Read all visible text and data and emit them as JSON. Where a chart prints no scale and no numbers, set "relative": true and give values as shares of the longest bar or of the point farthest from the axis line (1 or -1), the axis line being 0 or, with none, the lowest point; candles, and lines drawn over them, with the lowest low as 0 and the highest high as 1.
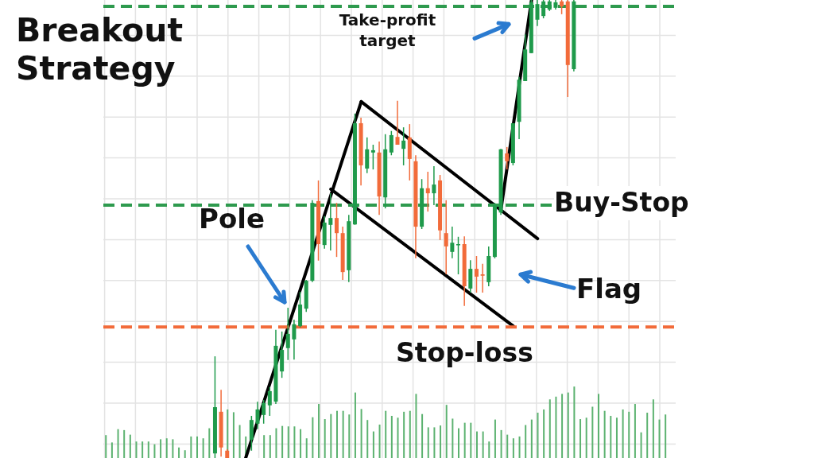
{
  "chart_data": {
    "type": "candlestick",
    "title": "Breakout Strategy",
    "relative": true,
    "grid": true,
    "legend": false,
    "tick_labels": false,
    "categories": [
      null,
      null,
      null,
      null,
      null,
      null,
      null,
      null,
      null,
      null,
      null,
      null,
      null,
      null,
      null,
      null,
      null,
      null,
      null,
      null,
      null,
      null,
      null,
      null,
      null,
      null,
      null,
      null,
      null,
      null,
      null,
      null,
      null,
      null,
      null,
      null,
      null,
      null,
      null,
      null,
      null,
      null,
      null,
      null,
      null,
      null,
      null,
      null,
      null,
      null,
      null,
      null,
      null,
      null,
      null,
      null,
      null,
      null,
      null,
      null,
      null,
      null,
      null,
      null,
      null,
      null,
      null,
      null,
      null,
      null,
      null,
      null,
      null,
      null,
      null,
      null,
      null,
      null,
      null,
      null,
      null,
      null,
      null,
      null,
      null,
      null,
      null,
      null,
      null,
      null,
      null,
      null,
      null
    ],
    "ohlc": [
      null,
      null,
      null,
      null,
      null,
      null,
      null,
      null,
      null,
      null,
      null,
      null,
      null,
      null,
      null,
      null,
      null,
      null,
      [
        0.01,
        0.222,
        0,
        0.111
      ],
      [
        0.101,
        0.149,
        0.003,
        0.023
      ],
      [
        0.016,
        0.019,
        0,
        0
      ],
      null,
      null,
      null,
      [
        0.04,
        0.092,
        0.016,
        0.083
      ],
      [
        0.075,
        0.123,
        0.063,
        0.106
      ],
      [
        0.094,
        0.127,
        0.075,
        0.12
      ],
      [
        0.115,
        0.155,
        0.092,
        0.146
      ],
      [
        0.123,
        0.28,
        0.118,
        0.245
      ],
      [
        0.189,
        0.276,
        0.175,
        0.236
      ],
      [
        0.24,
        0.328,
        0.214,
        0.271
      ],
      [
        0.259,
        0.302,
        0.215,
        0.292
      ],
      [
        0.288,
        0.363,
        0.285,
        0.335
      ],
      [
        0.326,
        0.389,
        0.319,
        0.387
      ],
      [
        0.387,
        0.563,
        0.384,
        0.557
      ],
      [
        0.561,
        0.606,
        0.431,
        0.467
      ],
      [
        0.465,
        0.528,
        0.457,
        0.514
      ],
      [
        0.509,
        0.578,
        0.453,
        0.524
      ],
      [
        0.524,
        0.557,
        0.439,
        0.491
      ],
      [
        0.491,
        0.505,
        0.389,
        0.406
      ],
      [
        0.41,
        0.531,
        0.384,
        0.517
      ],
      [
        0.51,
        0.752,
        0.509,
        0.731
      ],
      [
        0.731,
        0.743,
        0.595,
        0.639
      ],
      [
        0.632,
        0.7,
        0.622,
        0.674
      ],
      [
        0.667,
        0.684,
        0.63,
        0.672
      ],
      [
        0.667,
        0.691,
        0.531,
        0.571
      ],
      [
        0.569,
        0.707,
        0.545,
        0.674
      ],
      [
        0.667,
        0.714,
        0.661,
        0.705
      ],
      [
        0.701,
        0.78,
        0.684,
        0.684
      ],
      [
        0.675,
        0.722,
        0.639,
        0.693
      ],
      [
        0.7,
        0.729,
        0.606,
        0.653
      ],
      [
        0.648,
        0.661,
        0.436,
        0.505
      ],
      [
        0.505,
        0.609,
        0.5,
        0.589
      ],
      [
        0.589,
        0.625,
        0.538,
        0.578
      ],
      [
        0.578,
        0.637,
        0.552,
        0.597
      ],
      [
        0.606,
        0.618,
        0.476,
        0.497
      ],
      [
        0.491,
        0.563,
        0.401,
        0.462
      ],
      [
        0.45,
        0.505,
        0.436,
        0.47
      ],
      [
        0.465,
        0.483,
        0.401,
        0.467
      ],
      [
        0.467,
        0.484,
        0.332,
        0.375
      ],
      [
        0.37,
        0.432,
        0.361,
        0.413
      ],
      [
        0.413,
        0.441,
        0.361,
        0.396
      ],
      [
        0.401,
        0.424,
        0.361,
        0.398
      ],
      [
        0.384,
        0.462,
        0.375,
        0.441
      ],
      [
        0.439,
        0.557,
        0.436,
        0.552
      ],
      [
        0.536,
        0.675,
        0.531,
        0.674
      ],
      [
        0.665,
        0.679,
        0.63,
        0.648
      ],
      [
        0.644,
        0.731,
        0.639,
        0.731
      ],
      [
        0.734,
        0.832,
        0.696,
        0.826
      ],
      [
        0.823,
        0.925,
        0.823,
        0.892
      ],
      [
        0.884,
        1,
        0.884,
        0.995
      ],
      [
        0.957,
        1,
        0.943,
        0.991
      ],
      [
        0.965,
        1,
        0.96,
        0.997
      ],
      [
        0.979,
        1,
        0.976,
        0.997
      ],
      [
        0.983,
        1,
        0.979,
        0.995
      ],
      [
        0.997,
        1,
        0.969,
        0.986
      ],
      [
        0.997,
        1,
        0.788,
        0.858
      ],
      [
        0.849,
        1,
        0.844,
        0.997
      ],
      null,
      null,
      null,
      null,
      null,
      null,
      null,
      null,
      null,
      null,
      null,
      null,
      null,
      null,
      null
    ],
    "colors": [
      null,
      null,
      null,
      null,
      null,
      null,
      null,
      null,
      null,
      null,
      null,
      null,
      null,
      null,
      null,
      null,
      null,
      null,
      "#1f9a4b",
      "#f26b3a",
      "#f26b3a",
      null,
      null,
      null,
      "#1f9a4b",
      "#1f9a4b",
      "#1f9a4b",
      "#1f9a4b",
      "#1f9a4b",
      "#1f9a4b",
      "#1f9a4b",
      "#1f9a4b",
      "#1f9a4b",
      "#1f9a4b",
      "#1f9a4b",
      "#f26b3a",
      "#1f9a4b",
      "#1f9a4b",
      "#f26b3a",
      "#f26b3a",
      "#1f9a4b",
      "#1f9a4b",
      "#f26b3a",
      "#1f9a4b",
      "#1f9a4b",
      "#f26b3a",
      "#1f9a4b",
      "#1f9a4b",
      "#f26b3a",
      "#1f9a4b",
      "#f26b3a",
      "#f26b3a",
      "#1f9a4b",
      "#f26b3a",
      "#1f9a4b",
      "#f26b3a",
      "#f26b3a",
      "#1f9a4b",
      "#1f9a4b",
      "#f26b3a",
      "#1f9a4b",
      "#f26b3a",
      "#f26b3a",
      "#1f9a4b",
      "#1f9a4b",
      "#1f9a4b",
      "#f26b3a",
      "#1f9a4b",
      "#1f9a4b",
      "#1f9a4b",
      "#1f9a4b",
      "#1f9a4b",
      "#1f9a4b",
      "#1f9a4b",
      "#1f9a4b",
      "#f26b3a",
      "#f26b3a",
      "#1f9a4b",
      null,
      null,
      null,
      null,
      null,
      null,
      null,
      null,
      null,
      null,
      null,
      null,
      null,
      null,
      null
    ],
    "series": [
      {
        "type": "bar",
        "color": "#5cb270",
        "values": [
          0.05,
          0.034,
          0.063,
          0.061,
          0.051,
          0.036,
          0.036,
          0.036,
          0.03,
          0.041,
          0.043,
          0.041,
          0.023,
          0.017,
          0.047,
          0.047,
          0.043,
          0.065,
          null,
          null,
          0.106,
          0.1,
          0.072,
          0.047,
          null,
          null,
          0.05,
          0.05,
          0.065,
          0.07,
          0.069,
          0.069,
          0.063,
          0.043,
          0.089,
          0.118,
          0.085,
          0.096,
          0.103,
          0.103,
          0.095,
          0.143,
          0.107,
          0.083,
          0.058,
          0.073,
          0.103,
          0.092,
          0.088,
          0.101,
          0.103,
          0.14,
          0.096,
          0.067,
          0.067,
          0.071,
          0.116,
          0.086,
          0.065,
          0.077,
          0.077,
          0.058,
          0.058,
          0.036,
          0.084,
          0.061,
          0.051,
          0.043,
          0.047,
          0.072,
          0.084,
          0.099,
          0.106,
          0.128,
          0.134,
          0.14,
          0.143,
          0.156,
          0.085,
          0.088,
          0.112,
          0.14,
          0.103,
          0.092,
          0.088,
          0.106,
          0.101,
          0.118,
          0.056,
          0.099,
          0.128,
          0.084,
          0.095
        ]
      },
      {
        "type": "line",
        "color": "#000000",
        "values": [
          null,
          null,
          null,
          null,
          null,
          null,
          null,
          null,
          null,
          null,
          null,
          null,
          null,
          null,
          null,
          null,
          null,
          null,
          null,
          null,
          null,
          null,
          null,
          0,
          null,
          null,
          null,
          null,
          null,
          null,
          null,
          null,
          null,
          null,
          null,
          null,
          null,
          null,
          null,
          null,
          null,
          null,
          0.778,
          null,
          null,
          null,
          null,
          null,
          null,
          null,
          null,
          null,
          null,
          null,
          null,
          null,
          null,
          null,
          null,
          null,
          null,
          null,
          null,
          null,
          null,
          null,
          null,
          null,
          null,
          null,
          null,
          null,
          null,
          null,
          null,
          null,
          null,
          null,
          null,
          null,
          null,
          null,
          null,
          null,
          null,
          null,
          null,
          null,
          null,
          null,
          null,
          null,
          null
        ]
      },
      {
        "type": "line",
        "color": "#000000",
        "values": [
          null,
          null,
          null,
          null,
          null,
          null,
          null,
          null,
          null,
          null,
          null,
          null,
          null,
          null,
          null,
          null,
          null,
          null,
          null,
          null,
          null,
          null,
          null,
          null,
          null,
          null,
          null,
          null,
          null,
          null,
          null,
          null,
          null,
          null,
          null,
          null,
          null,
          null,
          null,
          null,
          null,
          null,
          0.778,
          null,
          null,
          null,
          null,
          null,
          null,
          null,
          null,
          null,
          null,
          null,
          null,
          null,
          null,
          null,
          null,
          null,
          null,
          null,
          null,
          null,
          null,
          null,
          null,
          null,
          null,
          null,
          null,
          0.479,
          null,
          null,
          null,
          null,
          null,
          null,
          null,
          null,
          null,
          null,
          null,
          null,
          null,
          null,
          null,
          null,
          null,
          null,
          null,
          null,
          null
        ]
      },
      {
        "type": "line",
        "color": "#000000",
        "values": [
          null,
          null,
          null,
          null,
          null,
          null,
          null,
          null,
          null,
          null,
          null,
          null,
          null,
          null,
          null,
          null,
          null,
          null,
          null,
          null,
          null,
          null,
          null,
          null,
          null,
          null,
          null,
          null,
          null,
          null,
          null,
          null,
          null,
          null,
          null,
          null,
          null,
          0.587,
          null,
          null,
          null,
          null,
          null,
          null,
          null,
          null,
          null,
          null,
          null,
          null,
          null,
          null,
          null,
          null,
          null,
          null,
          null,
          null,
          null,
          null,
          null,
          null,
          null,
          null,
          null,
          null,
          null,
          0.288,
          null,
          null,
          null,
          null,
          null,
          null,
          null,
          null,
          null,
          null,
          null,
          null,
          null,
          null,
          null,
          null,
          null,
          null,
          null,
          null,
          null,
          null,
          null,
          null,
          null
        ]
      },
      {
        "type": "line",
        "color": "#000000",
        "values": [
          null,
          null,
          null,
          null,
          null,
          null,
          null,
          null,
          null,
          null,
          null,
          null,
          null,
          null,
          null,
          null,
          null,
          null,
          null,
          null,
          null,
          null,
          null,
          null,
          null,
          null,
          null,
          null,
          null,
          null,
          null,
          null,
          null,
          null,
          null,
          null,
          null,
          null,
          null,
          null,
          null,
          null,
          null,
          null,
          null,
          null,
          null,
          null,
          null,
          null,
          null,
          null,
          null,
          null,
          null,
          null,
          null,
          null,
          null,
          null,
          null,
          null,
          null,
          null,
          null,
          0.545,
          null,
          null,
          null,
          null,
          1,
          null,
          null,
          null,
          null,
          null,
          null,
          null,
          null,
          null,
          null,
          null,
          null,
          null,
          null,
          null,
          null,
          null,
          null,
          null,
          null,
          null,
          null
        ]
      }
    ],
    "ref_lines": [
      {
        "axis": "y",
        "value": 0.986,
        "label": "Take-profit target",
        "color": "#2e9a4e",
        "line_style": "dashed"
      },
      {
        "axis": "y",
        "value": 0.552,
        "label": "Buy-Stop",
        "color": "#2e9a4e",
        "line_style": "dashed"
      },
      {
        "axis": "y",
        "value": 0.286,
        "label": "Stop-loss",
        "color": "#f26b3a",
        "line_style": "dashed"
      }
    ],
    "annotations": [
      "Pole",
      "Flag"
    ]
  }
}
